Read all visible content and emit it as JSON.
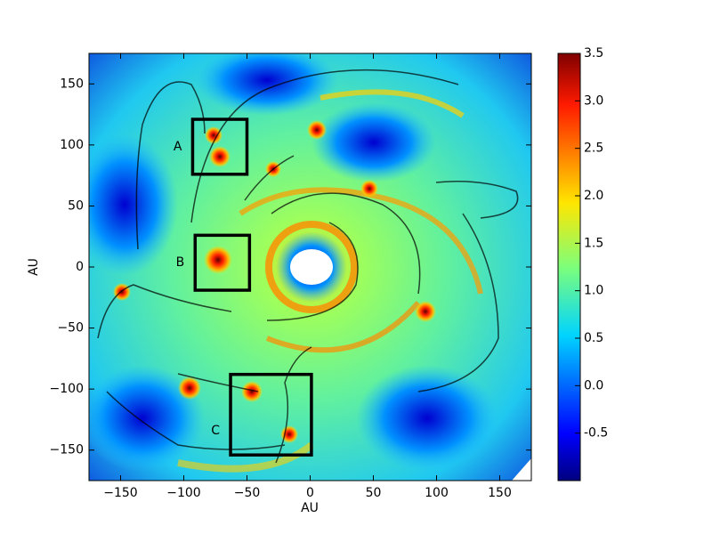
{
  "chart_data": {
    "type": "image",
    "xlabel": "AU",
    "ylabel": "AU",
    "xlim": [
      -175,
      175
    ],
    "ylim": [
      -175,
      175
    ],
    "xticks": [
      {
        "value": -150,
        "label": "−150"
      },
      {
        "value": -100,
        "label": "−100"
      },
      {
        "value": -50,
        "label": "−50"
      },
      0,
      50,
      100,
      150
    ],
    "yticks": [
      {
        "value": -150,
        "label": "−150"
      },
      {
        "value": -100,
        "label": "−100"
      },
      {
        "value": -50,
        "label": "−50"
      },
      0,
      50,
      100,
      150
    ],
    "colorbar": {
      "lim": [
        -1,
        3.5
      ],
      "ticks": [
        {
          "value": -0.5,
          "label": "-0.5"
        },
        {
          "value": 0,
          "label": "0.0"
        },
        {
          "value": 0.5,
          "label": "0.5"
        },
        {
          "value": 1,
          "label": "1.0"
        },
        {
          "value": 1.5,
          "label": "1.5"
        },
        {
          "value": 2,
          "label": "2.0"
        },
        {
          "value": 2.5,
          "label": "2.5"
        },
        {
          "value": 3,
          "label": "3.0"
        },
        3.5
      ]
    },
    "regions": [
      {
        "label": "A",
        "x": [
          -93,
          -50
        ],
        "y": [
          76,
          121
        ]
      },
      {
        "label": "B",
        "x": [
          -91,
          -48
        ],
        "y": [
          -19,
          26
        ]
      },
      {
        "label": "C",
        "x": [
          -63,
          1
        ],
        "y": [
          -154,
          -88
        ]
      }
    ]
  }
}
